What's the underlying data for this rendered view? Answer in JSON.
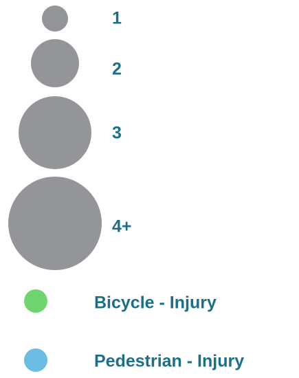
{
  "size_legend": {
    "color": "#939598",
    "items": [
      {
        "label": "1"
      },
      {
        "label": "2"
      },
      {
        "label": "3"
      },
      {
        "label": "4+"
      }
    ]
  },
  "type_legend": {
    "items": [
      {
        "label": "Bicycle - Injury",
        "color": "#6fd66f"
      },
      {
        "label": "Pedestrian - Injury",
        "color": "#6bbde4"
      }
    ]
  },
  "text_color": "#1b6f8b"
}
